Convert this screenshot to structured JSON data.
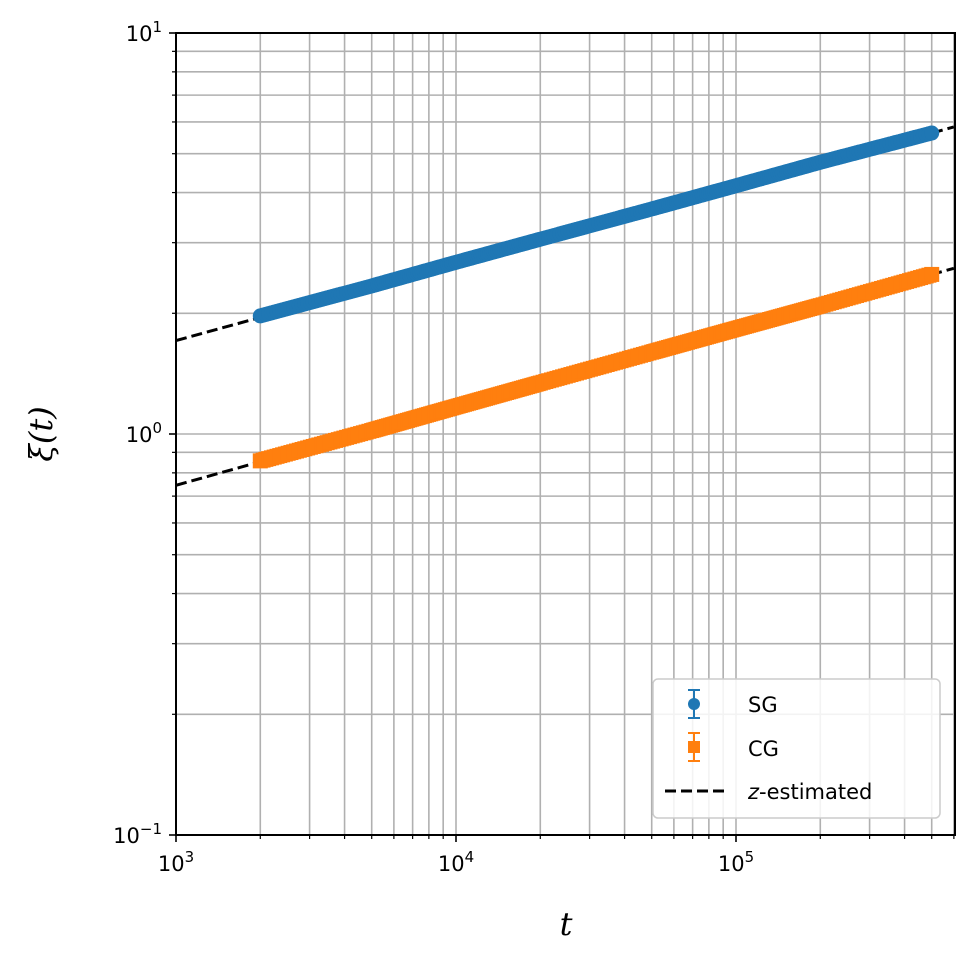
{
  "chart_data": {
    "type": "scatter",
    "title": "",
    "xlabel": "t",
    "ylabel": "ξ(t)",
    "xscale": "log",
    "yscale": "log",
    "xlim": [
      1000,
      600000
    ],
    "ylim": [
      0.1,
      10
    ],
    "grid": {
      "major": true,
      "minor": true
    },
    "x_ticks": [
      {
        "base": "10",
        "exp": "3",
        "value": 1000
      },
      {
        "base": "10",
        "exp": "4",
        "value": 10000
      },
      {
        "base": "10",
        "exp": "5",
        "value": 100000
      }
    ],
    "y_ticks": [
      {
        "base": "10",
        "exp": "−1",
        "value": 0.1
      },
      {
        "base": "10",
        "exp": "0",
        "value": 1
      },
      {
        "base": "10",
        "exp": "1",
        "value": 10
      }
    ],
    "legend_position": "lower right",
    "series": [
      {
        "name": "SG",
        "marker": "circle",
        "color": "#1f77b4",
        "with_errorbars": true,
        "x": [
          2000,
          5000,
          10000,
          20000,
          50000,
          100000,
          200000,
          500000
        ],
        "y": [
          1.97,
          2.34,
          2.68,
          3.06,
          3.64,
          4.16,
          4.76,
          5.63
        ]
      },
      {
        "name": "CG",
        "marker": "square",
        "color": "#ff7f0e",
        "with_errorbars": true,
        "x": [
          2000,
          5000,
          10000,
          20000,
          50000,
          100000,
          200000,
          500000
        ],
        "y": [
          0.857,
          1.02,
          1.17,
          1.34,
          1.6,
          1.83,
          2.09,
          2.5
        ]
      },
      {
        "name": "z-estimated",
        "style": "dashed",
        "color": "#000000",
        "fits": [
          {
            "for": "SG",
            "x": [
              1000,
              600000
            ],
            "y": [
              1.71,
              5.83
            ]
          },
          {
            "for": "CG",
            "x": [
              1000,
              600000
            ],
            "y": [
              0.745,
              2.59
            ]
          }
        ]
      }
    ]
  },
  "legend": {
    "items": [
      {
        "label": "SG",
        "color": "#1f77b4"
      },
      {
        "label": "CG",
        "color": "#ff7f0e"
      },
      {
        "label_italic": "z",
        "label_rest": "-estimated",
        "color": "#000000"
      }
    ]
  },
  "axes": {
    "x_label": "t",
    "y_label": "ξ(t)"
  }
}
